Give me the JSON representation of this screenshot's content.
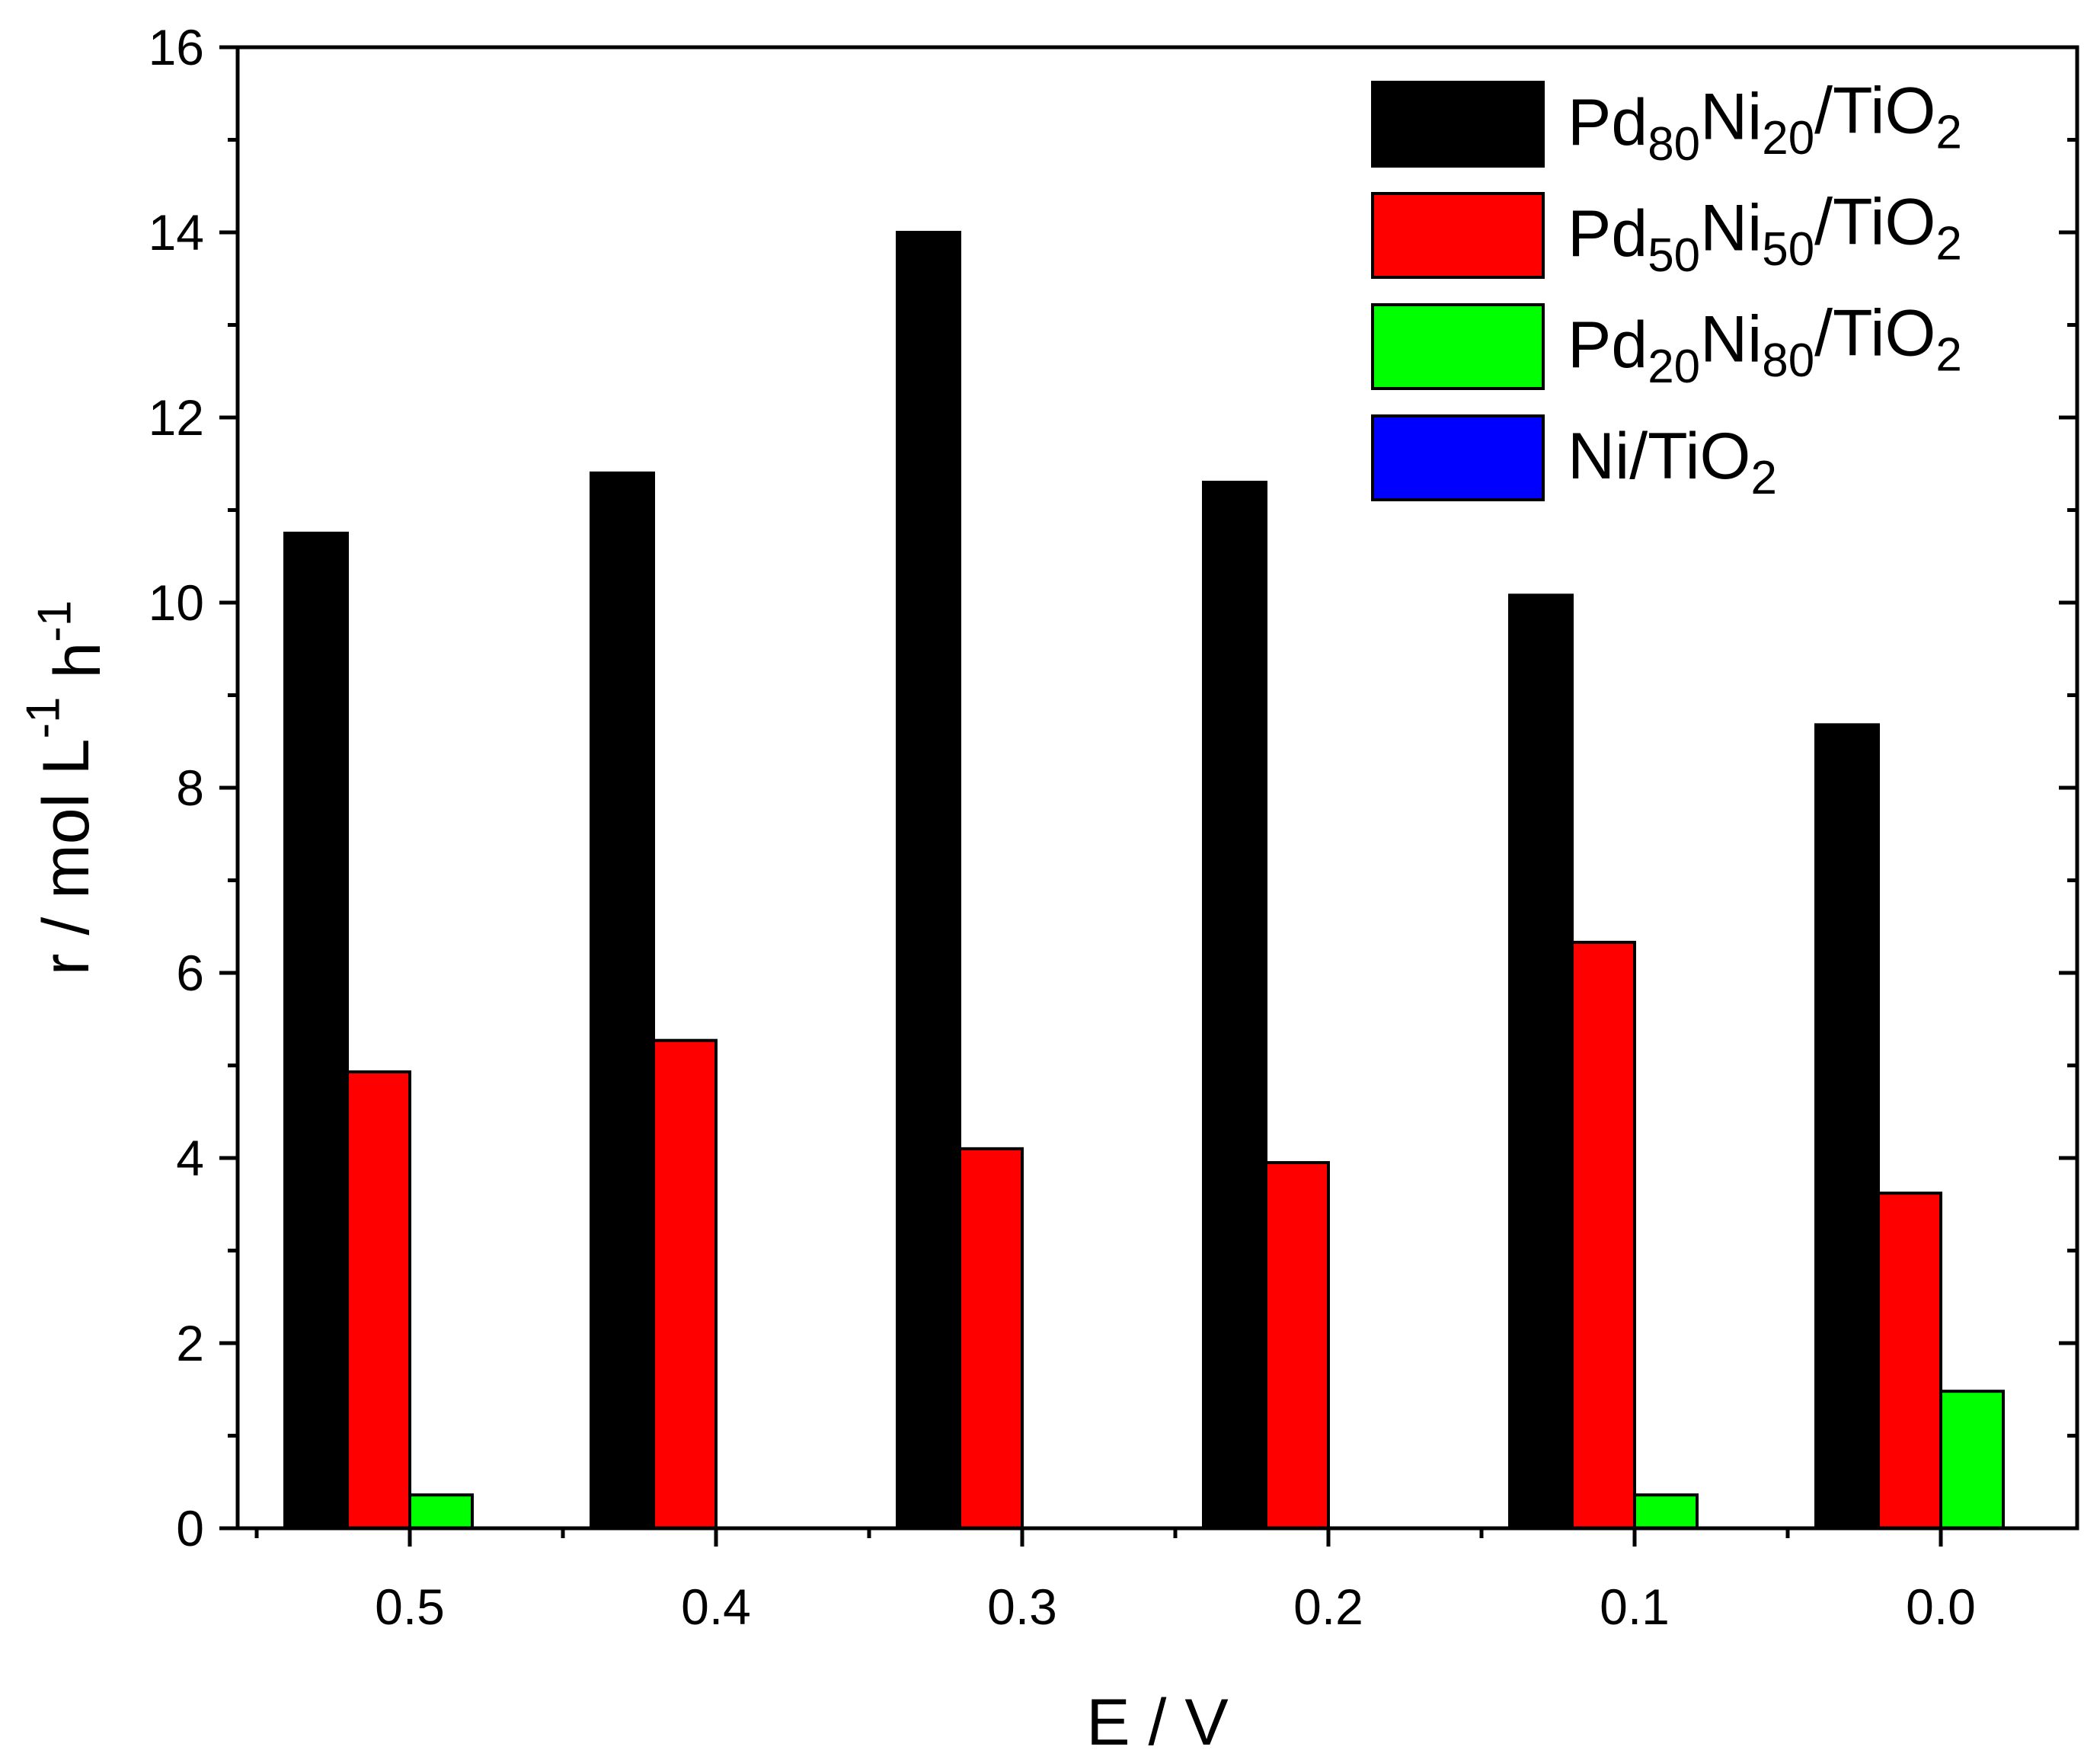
{
  "chart_data": {
    "type": "bar",
    "title": "",
    "xlabel": "E / V",
    "ylabel_parts": [
      "r / mol L",
      "-1",
      " h",
      "-1"
    ],
    "categories": [
      "0.5",
      "0.4",
      "0.3",
      "0.2",
      "0.1",
      "0.0"
    ],
    "ylim": [
      0,
      16
    ],
    "yticks": [
      "0",
      "2",
      "4",
      "6",
      "8",
      "10",
      "12",
      "14",
      "16"
    ],
    "legend_position": "top-right",
    "series": [
      {
        "name_parts": [
          "Pd",
          "80",
          "Ni",
          "20",
          "/TiO",
          "2"
        ],
        "color": "#000000",
        "values": [
          10.75,
          11.4,
          14.0,
          11.3,
          10.08,
          8.68
        ]
      },
      {
        "name_parts": [
          "Pd",
          "50",
          "Ni",
          "50",
          "/TiO",
          "2"
        ],
        "color": "#ff0000",
        "values": [
          4.93,
          5.27,
          4.1,
          3.95,
          6.33,
          3.62
        ]
      },
      {
        "name_parts": [
          "Pd",
          "20",
          "Ni",
          "80",
          "/TiO",
          "2"
        ],
        "color": "#00ff00",
        "values": [
          0.36,
          0,
          0,
          0,
          0.36,
          1.48
        ]
      },
      {
        "name_parts": [
          "Ni/TiO",
          "2"
        ],
        "color": "#0000ff",
        "values": [
          0,
          0,
          0,
          0,
          0,
          0
        ]
      }
    ]
  }
}
